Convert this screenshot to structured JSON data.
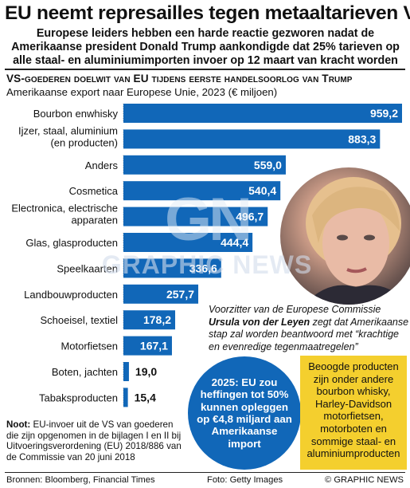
{
  "header": {
    "title": "EU neemt represailles tegen metaaltarieven VS",
    "standfirst": "Europese leiders hebben een harde reactie gezworen nadat de Amerikaanse president Donald Trump aankondigde dat 25% tarieven op alle staal- en aluminiumimporten invoer op 12 maart van kracht worden"
  },
  "colors": {
    "bar": "#1167b8",
    "bubble": "#1167b8",
    "note_bg": "#f4cf2e"
  },
  "chart_data": {
    "type": "bar",
    "orientation": "horizontal",
    "title": "VS-goederen doelwit van EU tijdens eerste handelsoorlog van Trump",
    "subtitle": "Amerikaanse export naar Europese Unie, 2023 (€ miljoen)",
    "categories": [
      "Bourbon enwhisky",
      "Ijzer, staal, aluminium\n(en producten)",
      "Anders",
      "Cosmetica",
      "Electronica, electrische\napparaten",
      "Glas, glasproducten",
      "Speelkaarten",
      "Landbouwproducten",
      "Schoeisel, textiel",
      "Motorfietsen",
      "Boten, jachten",
      "Tabaksproducten"
    ],
    "values": [
      959.2,
      883.3,
      559.0,
      540.4,
      496.7,
      444.4,
      336.6,
      257.7,
      178.2,
      167.1,
      19.0,
      15.4
    ],
    "value_labels": [
      "959,2",
      "883,3",
      "559,0",
      "540,4",
      "496,7",
      "444,4",
      "336,6",
      "257,7",
      "178,2",
      "167,1",
      "19,0",
      "15,4"
    ],
    "xlim": [
      0,
      959.2
    ]
  },
  "photo": {
    "caption_prefix": "Voorzitter van de Europese Commissie",
    "caption_name": "Ursula von der Leyen",
    "caption_suffix": "zegt dat Amerikaanse stap zal worden beantwoord met “krachtige en evenredige tegenmaatregelen”"
  },
  "bubble": {
    "text": "2025: EU zou heffingen tot 50% kunnen opleggen op €4,8 miljard aan Amerikaanse import"
  },
  "note_box": {
    "text": "Beoogde producten zijn onder andere bourbon whisky, Harley-Davidson motorfietsen, motorboten en sommige staal- en aluminiumproducten"
  },
  "footnote": {
    "label": "Noot:",
    "text": "EU-invoer uit de VS van goederen die zijn opgenomen in de bijlagen I en II bij Uitvoeringsverordening (EU) 2018/886 van de Commissie van 20 juni 2018"
  },
  "footer": {
    "sources": "Bronnen: Bloomberg, Financial Times",
    "photo_credit": "Foto: Getty Images",
    "copyright": "© GRAPHIC NEWS"
  },
  "watermark": {
    "logo": "GN",
    "text": "GRAPHIC NEWS"
  }
}
